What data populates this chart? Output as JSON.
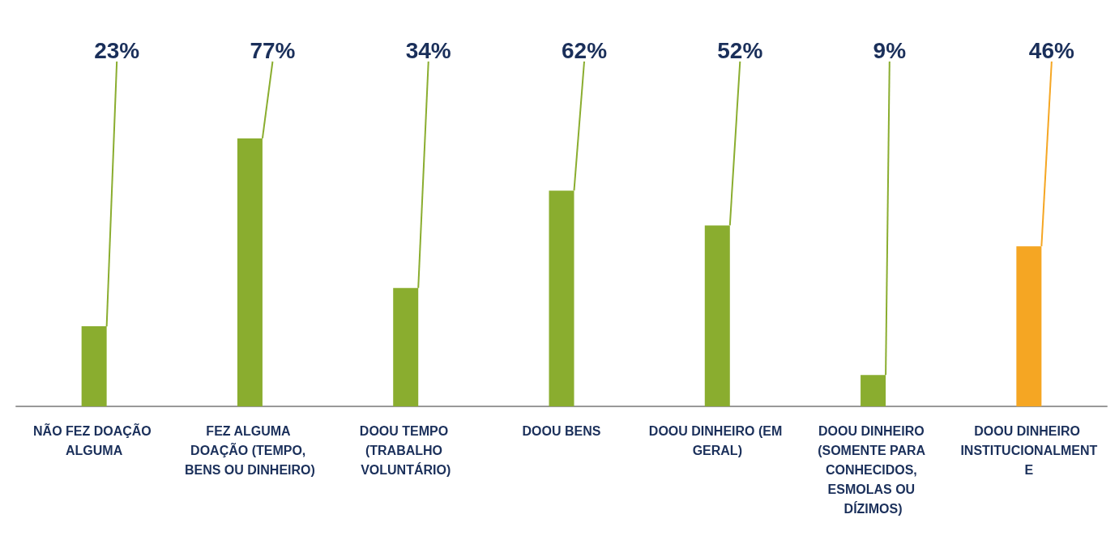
{
  "chart_data": {
    "type": "bar",
    "categories": [
      "NÃO FEZ DOAÇÃO ALGUMA",
      "FEZ ALGUMA DOAÇÃO (TEMPO, BENS OU DINHEIRO)",
      "DOOU TEMPO (TRABALHO VOLUNTÁRIO)",
      "DOOU BENS",
      "DOOU DINHEIRO (EM GERAL)",
      "DOOU DINHEIRO (SOMENTE PARA CONHECIDOS, ESMOLAS OU DÍZIMOS)",
      "DOOU DINHEIRO INSTITUCIONALMENTE"
    ],
    "values": [
      23,
      77,
      34,
      62,
      52,
      9,
      46
    ],
    "value_labels": [
      "23%",
      "77%",
      "34%",
      "62%",
      "52%",
      "9%",
      "46%"
    ],
    "colors": [
      "#8aad2f",
      "#8aad2f",
      "#8aad2f",
      "#8aad2f",
      "#8aad2f",
      "#8aad2f",
      "#f5a623"
    ],
    "tick_labels": "x",
    "grid": false
  }
}
